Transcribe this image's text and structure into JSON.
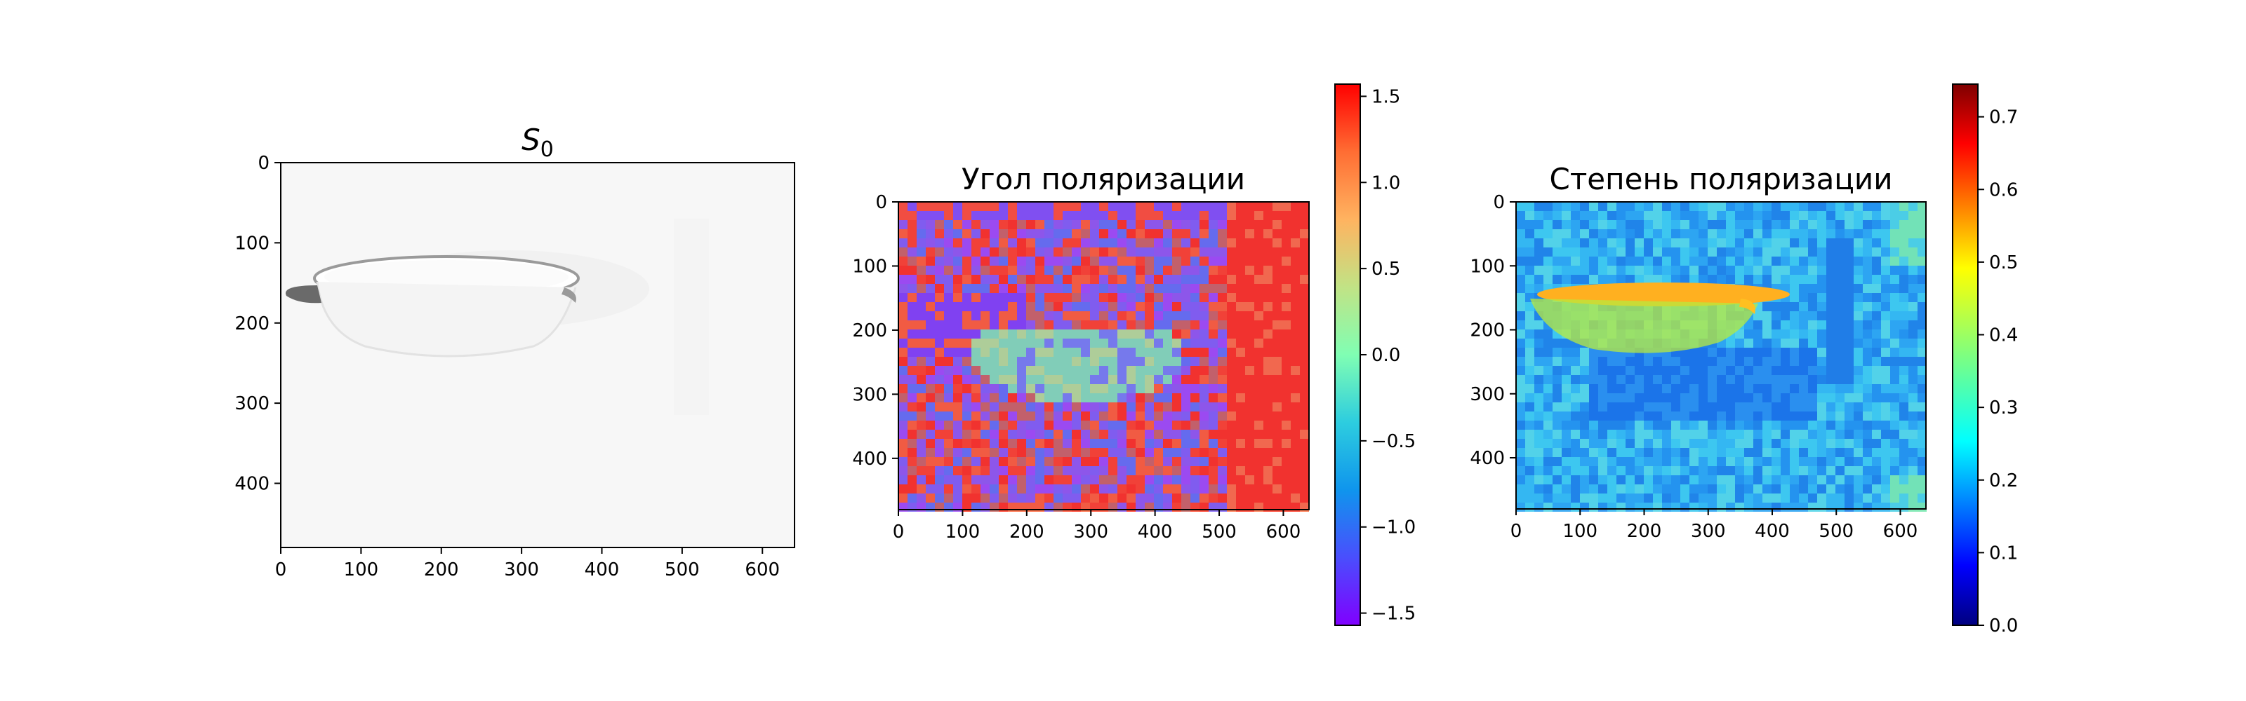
{
  "chart_data": [
    {
      "type": "heatmap",
      "title_base": "S",
      "title_sub": "0",
      "colormap": "gray",
      "x_range": [
        0,
        640
      ],
      "y_range": [
        0,
        480
      ],
      "x_ticks": [
        0,
        100,
        200,
        300,
        400,
        500,
        600
      ],
      "y_ticks": [
        0,
        100,
        200,
        300,
        400
      ],
      "colorbar": false
    },
    {
      "type": "heatmap",
      "title": "Угол поляризации",
      "colormap": "rainbow",
      "x_range": [
        0,
        640
      ],
      "y_range": [
        0,
        480
      ],
      "x_ticks": [
        0,
        100,
        200,
        300,
        400,
        500,
        600
      ],
      "y_ticks": [
        0,
        100,
        200,
        300,
        400
      ],
      "colorbar": true,
      "colorbar_range": [
        -1.5708,
        1.5708
      ],
      "colorbar_ticks": [
        1.5,
        1.0,
        0.5,
        0.0,
        -0.5,
        -1.0,
        -1.5
      ],
      "colorbar_tick_labels": [
        "1.5",
        "1.0",
        "0.5",
        "0.0",
        "−0.5",
        "−1.0",
        "−1.5"
      ]
    },
    {
      "type": "heatmap",
      "title": "Степень поляризации",
      "colormap": "jet",
      "x_range": [
        0,
        640
      ],
      "y_range": [
        0,
        480
      ],
      "x_ticks": [
        0,
        100,
        200,
        300,
        400,
        500,
        600
      ],
      "y_ticks": [
        0,
        100,
        200,
        300,
        400
      ],
      "colorbar": true,
      "colorbar_range": [
        0,
        0.745
      ],
      "colorbar_ticks": [
        0.7,
        0.6,
        0.5,
        0.4,
        0.3,
        0.2,
        0.1,
        0.0
      ],
      "colorbar_tick_labels": [
        "0.7",
        "0.6",
        "0.5",
        "0.4",
        "0.3",
        "0.2",
        "0.1",
        "0.0"
      ]
    }
  ]
}
